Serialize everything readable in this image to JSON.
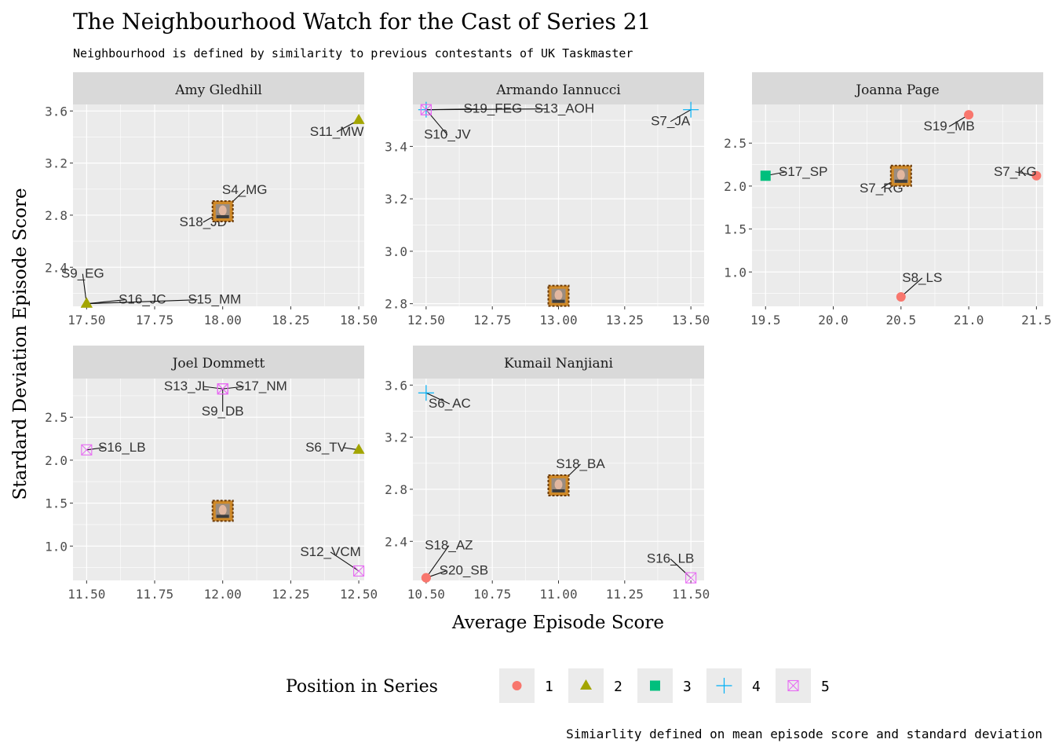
{
  "title": "The Neighbourhood Watch for the Cast of Series 21",
  "subtitle": "Neighbourhood is defined by similarity to previous contestants of UK Taskmaster",
  "caption": "Simiarlity defined on mean episode score and standard deviation",
  "colors": {
    "panel_bg": "#ebebeb",
    "strip_bg": "#d9d9d9",
    "grid": "#ffffff",
    "pos1": "#f8766d",
    "pos2": "#a3a500",
    "pos3": "#00bf7d",
    "pos4": "#00b0f6",
    "pos5": "#e76bf3",
    "frame": "#c07a1e"
  },
  "chart_data": {
    "type": "scatter",
    "xlabel": "Average Episode Score",
    "ylabel": "Stardard Deviation Episode Score",
    "legend": {
      "title": "Position in Series",
      "placement": "bottom",
      "entries": [
        {
          "label": "1",
          "shape": "circle"
        },
        {
          "label": "2",
          "shape": "triangle"
        },
        {
          "label": "3",
          "shape": "square"
        },
        {
          "label": "4",
          "shape": "plus"
        },
        {
          "label": "5",
          "shape": "square-cross"
        }
      ]
    },
    "facets": [
      {
        "name": "Amy Gledhill",
        "xlim": [
          17.45,
          18.52
        ],
        "ylim": [
          2.1,
          3.65
        ],
        "xticks": [
          17.5,
          17.75,
          18.0,
          18.25,
          18.5
        ],
        "xtick_labels": [
          "17.50",
          "17.75",
          "18.00",
          "18.25",
          "18.50"
        ],
        "yticks": [
          2.4,
          2.8,
          3.2,
          3.6
        ],
        "ytick_labels": [
          "2.4",
          "2.8",
          "3.2",
          "3.6"
        ],
        "target": {
          "x": 18.0,
          "y": 2.83
        },
        "points": [
          {
            "label": "S11_MW",
            "x": 18.5,
            "y": 3.53,
            "position": 2
          },
          {
            "label": "S4_MG",
            "x": 18.0,
            "y": 2.83,
            "position": 3
          },
          {
            "label": "S18_JD",
            "x": 18.0,
            "y": 2.83,
            "position": 2
          },
          {
            "label": "S9_EG",
            "x": 17.5,
            "y": 2.12,
            "position": 2
          },
          {
            "label": "S16_JC",
            "x": 17.5,
            "y": 2.12,
            "position": 2
          },
          {
            "label": "S15_MM",
            "x": 17.5,
            "y": 2.12,
            "position": 2
          }
        ]
      },
      {
        "name": "Armando Iannucci",
        "xlim": [
          12.45,
          13.55
        ],
        "ylim": [
          2.79,
          3.56
        ],
        "xticks": [
          12.5,
          12.75,
          13.0,
          13.25,
          13.5
        ],
        "xtick_labels": [
          "12.50",
          "12.75",
          "13.00",
          "13.25",
          "13.50"
        ],
        "yticks": [
          2.8,
          3.0,
          3.2,
          3.4
        ],
        "ytick_labels": [
          "2.8",
          "3.0",
          "3.2",
          "3.4"
        ],
        "target": {
          "x": 13.0,
          "y": 2.83
        },
        "points": [
          {
            "label": "S19_FEG",
            "x": 12.5,
            "y": 3.54,
            "position": 4
          },
          {
            "label": "S13_AOH",
            "x": 12.5,
            "y": 3.54,
            "position": 5
          },
          {
            "label": "S10_JV",
            "x": 12.5,
            "y": 3.54,
            "position": 5
          },
          {
            "label": "S7_JA",
            "x": 13.5,
            "y": 3.54,
            "position": 4
          }
        ]
      },
      {
        "name": "Joanna Page",
        "xlim": [
          19.4,
          21.55
        ],
        "ylim": [
          0.6,
          2.95
        ],
        "xticks": [
          19.5,
          20.0,
          20.5,
          21.0,
          21.5
        ],
        "xtick_labels": [
          "19.5",
          "20.0",
          "20.5",
          "21.0",
          "21.5"
        ],
        "yticks": [
          1.0,
          1.5,
          2.0,
          2.5
        ],
        "ytick_labels": [
          "1.0",
          "1.5",
          "2.0",
          "2.5"
        ],
        "target": {
          "x": 20.5,
          "y": 2.12
        },
        "points": [
          {
            "label": "S19_MB",
            "x": 21.0,
            "y": 2.83,
            "position": 1
          },
          {
            "label": "S17_SP",
            "x": 19.5,
            "y": 2.12,
            "position": 3
          },
          {
            "label": "S7_RG",
            "x": 20.5,
            "y": 2.12,
            "position": 3
          },
          {
            "label": "S7_KG",
            "x": 21.5,
            "y": 2.12,
            "position": 1
          },
          {
            "label": "S8_LS",
            "x": 20.5,
            "y": 0.71,
            "position": 1
          }
        ]
      },
      {
        "name": "Joel Dommett",
        "xlim": [
          11.45,
          12.52
        ],
        "ylim": [
          0.6,
          2.95
        ],
        "xticks": [
          11.5,
          11.75,
          12.0,
          12.25,
          12.5
        ],
        "xtick_labels": [
          "11.50",
          "11.75",
          "12.00",
          "12.25",
          "12.50"
        ],
        "yticks": [
          1.0,
          1.5,
          2.0,
          2.5
        ],
        "ytick_labels": [
          "1.0",
          "1.5",
          "2.0",
          "2.5"
        ],
        "target": {
          "x": 12.0,
          "y": 1.41
        },
        "points": [
          {
            "label": "S13_JL",
            "x": 12.0,
            "y": 2.83,
            "position": 5
          },
          {
            "label": "S17_NM",
            "x": 12.0,
            "y": 2.83,
            "position": 5
          },
          {
            "label": "S9_DB",
            "x": 12.0,
            "y": 2.83,
            "position": 5
          },
          {
            "label": "S16_LB",
            "x": 11.5,
            "y": 2.12,
            "position": 5
          },
          {
            "label": "S6_TV",
            "x": 12.5,
            "y": 2.12,
            "position": 2
          },
          {
            "label": "S12_VCM",
            "x": 12.5,
            "y": 0.71,
            "position": 5
          }
        ]
      },
      {
        "name": "Kumail Nanjiani",
        "xlim": [
          10.45,
          11.55
        ],
        "ylim": [
          2.1,
          3.65
        ],
        "xticks": [
          10.5,
          10.75,
          11.0,
          11.25,
          11.5
        ],
        "xtick_labels": [
          "10.50",
          "10.75",
          "11.00",
          "11.25",
          "11.50"
        ],
        "yticks": [
          2.4,
          2.8,
          3.2,
          3.6
        ],
        "ytick_labels": [
          "2.4",
          "2.8",
          "3.2",
          "3.6"
        ],
        "target": {
          "x": 11.0,
          "y": 2.83
        },
        "points": [
          {
            "label": "S6_AC",
            "x": 10.5,
            "y": 3.54,
            "position": 4
          },
          {
            "label": "S18_BA",
            "x": 11.0,
            "y": 2.83,
            "position": 5
          },
          {
            "label": "S18_AZ",
            "x": 10.5,
            "y": 2.12,
            "position": 1
          },
          {
            "label": "S20_SB",
            "x": 10.5,
            "y": 2.12,
            "position": 1
          },
          {
            "label": "S16_LB",
            "x": 11.5,
            "y": 2.12,
            "position": 5
          }
        ]
      }
    ]
  }
}
